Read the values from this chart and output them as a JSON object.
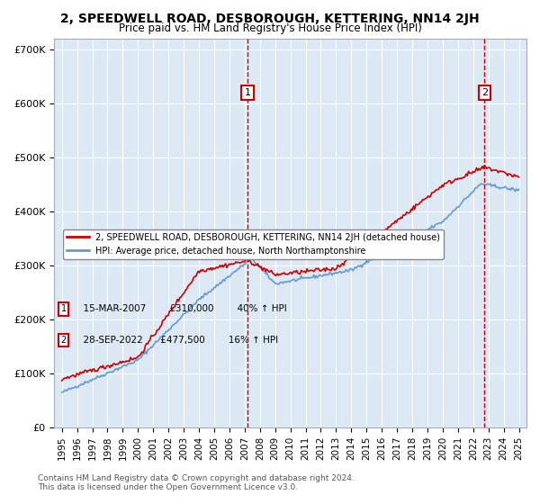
{
  "title": "2, SPEEDWELL ROAD, DESBOROUGH, KETTERING, NN14 2JH",
  "subtitle": "Price paid vs. HM Land Registry's House Price Index (HPI)",
  "bg_color": "#dce9f5",
  "plot_bg_color": "#dce9f5",
  "red_color": "#cc0000",
  "blue_color": "#6699cc",
  "ylabel_ticks": [
    "£0",
    "£100K",
    "£200K",
    "£300K",
    "£400K",
    "£500K",
    "£600K",
    "£700K"
  ],
  "ytick_vals": [
    0,
    100000,
    200000,
    300000,
    400000,
    500000,
    600000,
    700000
  ],
  "ylim": [
    0,
    720000
  ],
  "xlim_start": 1994.5,
  "xlim_end": 2025.5,
  "sale1_year": 2007.2,
  "sale1_price": 310000,
  "sale1_label": "1",
  "sale1_date": "15-MAR-2007",
  "sale1_hpi_pct": "40%",
  "sale2_year": 2022.75,
  "sale2_price": 477500,
  "sale2_label": "2",
  "sale2_date": "28-SEP-2022",
  "sale2_hpi_pct": "16%",
  "legend_line1": "2, SPEEDWELL ROAD, DESBOROUGH, KETTERING, NN14 2JH (detached house)",
  "legend_line2": "HPI: Average price, detached house, North Northamptonshire",
  "footnote": "Contains HM Land Registry data © Crown copyright and database right 2024.\nThis data is licensed under the Open Government Licence v3.0.",
  "xtick_years": [
    1995,
    1996,
    1997,
    1998,
    1999,
    2000,
    2001,
    2002,
    2003,
    2004,
    2005,
    2006,
    2007,
    2008,
    2009,
    2010,
    2011,
    2012,
    2013,
    2014,
    2015,
    2016,
    2017,
    2018,
    2019,
    2020,
    2021,
    2022,
    2023,
    2024,
    2025
  ]
}
